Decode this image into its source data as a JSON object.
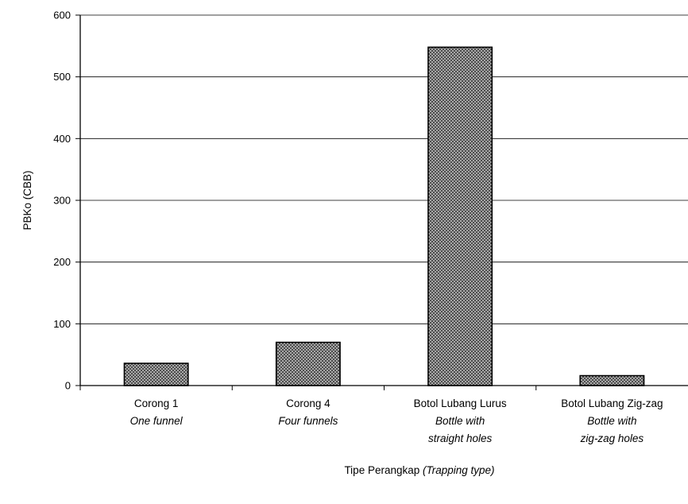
{
  "chart_data": {
    "type": "bar",
    "categories": [
      {
        "label": "Corong 1",
        "sublabel": [
          "One funnel"
        ]
      },
      {
        "label": "Corong 4",
        "sublabel": [
          "Four funnels"
        ]
      },
      {
        "label": "Botol Lubang Lurus",
        "sublabel": [
          "Bottle with",
          "straight holes"
        ]
      },
      {
        "label": "Botol Lubang Zig-zag",
        "sublabel": [
          "Bottle with",
          "zig-zag holes"
        ]
      }
    ],
    "values": [
      36,
      70,
      548,
      16
    ],
    "ylabel": "PBKo  (CBB)",
    "xlabel": "Tipe Perangkap",
    "xlabel_italic": "(Trapping type)",
    "ylim": [
      0,
      600
    ],
    "yticks": [
      "0",
      "100",
      "200",
      "300",
      "400",
      "500",
      "600"
    ],
    "grid": true,
    "bar_fill": "crosshatch",
    "colors": {
      "bar_base": "#bdbdbd",
      "bar_hatch": "#4a4a4a",
      "axis": "#000000"
    }
  }
}
